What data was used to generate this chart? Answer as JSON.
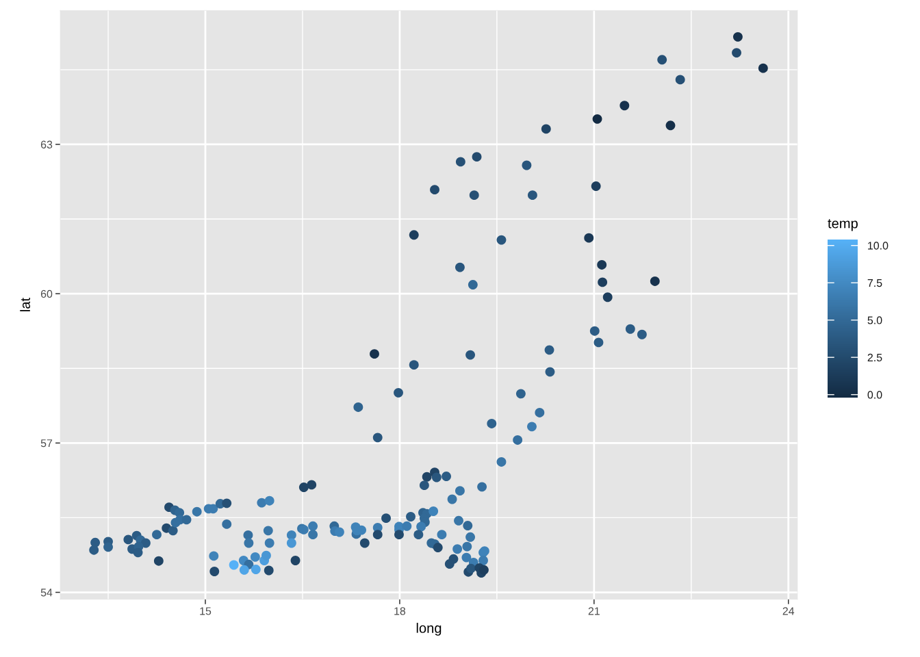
{
  "chart_data": {
    "type": "scatter",
    "xlabel": "long",
    "ylabel": "lat",
    "clabel": "temp",
    "x": [
      23.22,
      23.2,
      23.61,
      22.05,
      22.33,
      21.47,
      21.05,
      22.18,
      20.26,
      19.19,
      18.94,
      19.96,
      18.54,
      19.15,
      20.05,
      21.03,
      18.22,
      19.57,
      20.92,
      18.93,
      19.13,
      21.12,
      21.13,
      21.94,
      21.21,
      17.61,
      18.22,
      19.09,
      20.31,
      21.01,
      21.07,
      21.56,
      21.74,
      20.32,
      17.98,
      17.36,
      17.66,
      19.87,
      20.16,
      19.42,
      20.04,
      19.82,
      19.57,
      16.52,
      16.64,
      18.54,
      18.42,
      18.57,
      18.72,
      18.38,
      18.93,
      19.27,
      18.81,
      17.79,
      18.17,
      18.36,
      18.42,
      18.52,
      18.38,
      18.39,
      18.33,
      18.91,
      19.05,
      18.29,
      18.65,
      19.09,
      18.49,
      18.54,
      18.59,
      18.89,
      19.04,
      19.31,
      19.29,
      19.03,
      19.29,
      19.14,
      18.83,
      18.77,
      19.06,
      19.1,
      19.23,
      19.26,
      19.3,
      16.33,
      16.33,
      16.39,
      16.49,
      16.52,
      16.66,
      16.66,
      16.99,
      17.0,
      17.07,
      17.32,
      17.33,
      17.41,
      17.34,
      17.46,
      17.66,
      17.66,
      17.99,
      17.99,
      17.99,
      18.11,
      13.3,
      13.28,
      13.5,
      13.5,
      13.81,
      13.94,
      14.0,
      14.08,
      13.87,
      13.97,
      13.96,
      14.25,
      14.28,
      14.4,
      14.5,
      14.44,
      14.53,
      14.6,
      14.54,
      14.61,
      14.71,
      14.87,
      15.05,
      15.12,
      15.23,
      15.33,
      15.33,
      15.87,
      15.99,
      15.13,
      15.14,
      15.44,
      15.59,
      15.67,
      15.6,
      15.78,
      15.77,
      15.91,
      15.94,
      15.98,
      15.66,
      15.67,
      15.97,
      15.99
    ],
    "values": [
      65.16,
      64.84,
      64.53,
      64.7,
      64.3,
      63.78,
      63.51,
      63.38,
      63.31,
      62.75,
      62.65,
      62.58,
      62.09,
      61.98,
      61.98,
      62.16,
      61.18,
      61.08,
      61.12,
      60.53,
      60.18,
      60.58,
      60.23,
      60.25,
      59.93,
      58.79,
      58.57,
      58.77,
      58.87,
      59.25,
      59.02,
      59.29,
      59.18,
      58.43,
      58.01,
      57.72,
      57.11,
      57.99,
      57.61,
      57.39,
      57.33,
      57.06,
      56.62,
      56.11,
      56.16,
      56.41,
      56.32,
      56.31,
      56.33,
      56.15,
      56.04,
      56.12,
      55.87,
      55.49,
      55.52,
      55.6,
      55.58,
      55.63,
      55.49,
      55.41,
      55.32,
      55.44,
      55.34,
      55.16,
      55.16,
      55.11,
      54.99,
      54.97,
      54.9,
      54.87,
      54.92,
      54.83,
      54.8,
      54.7,
      54.64,
      54.6,
      54.67,
      54.57,
      54.41,
      54.48,
      54.49,
      54.39,
      54.45,
      55.15,
      54.99,
      54.64,
      55.28,
      55.26,
      55.33,
      55.16,
      55.33,
      55.23,
      55.21,
      55.31,
      55.17,
      55.25,
      55.24,
      54.99,
      55.3,
      55.16,
      55.32,
      55.26,
      55.16,
      55.33,
      55.0,
      54.85,
      55.02,
      54.91,
      55.06,
      55.14,
      55.05,
      54.99,
      54.87,
      54.92,
      54.8,
      55.16,
      54.63,
      55.29,
      55.24,
      55.71,
      55.65,
      55.6,
      55.4,
      55.46,
      55.46,
      55.62,
      55.68,
      55.68,
      55.78,
      55.79,
      55.37,
      55.8,
      55.84,
      54.73,
      54.42,
      54.55,
      54.64,
      54.56,
      54.45,
      54.46,
      54.71,
      54.64,
      54.74,
      54.44,
      55.15,
      54.99,
      55.24,
      54.99
    ],
    "cvalues": [
      0.5,
      2.5,
      0.5,
      3,
      3,
      0.5,
      -0.2,
      0.2,
      2,
      2.5,
      3,
      3.5,
      2.5,
      3,
      3.5,
      1.5,
      1.5,
      3.5,
      1,
      3.5,
      5,
      1,
      1.5,
      0.5,
      1.5,
      0.5,
      3.5,
      3.5,
      4,
      4,
      4,
      4,
      4,
      4,
      3.5,
      4.5,
      3.5,
      4.5,
      5.5,
      4.5,
      6.5,
      5.5,
      6,
      2,
      2,
      2,
      2,
      3.5,
      4,
      3.5,
      6,
      5.5,
      6,
      3,
      4,
      4.5,
      5,
      7,
      5,
      5,
      6.5,
      6,
      5,
      4,
      6.5,
      6,
      5,
      5,
      2.5,
      6.5,
      6,
      7,
      7,
      6.5,
      6.5,
      6.5,
      3,
      3,
      2.5,
      3.5,
      2,
      2,
      1.5,
      7,
      8.5,
      2,
      6,
      6.5,
      6.5,
      6,
      5,
      6.5,
      7,
      7,
      5.5,
      7,
      7,
      2.5,
      6.5,
      2.5,
      7,
      7,
      2.5,
      6.5,
      4,
      4,
      4,
      4.5,
      3.5,
      4,
      5,
      4,
      4,
      4.5,
      4,
      5,
      2,
      2.5,
      4,
      2.5,
      4.5,
      5,
      5.5,
      5.5,
      5,
      6,
      6.5,
      6.5,
      5,
      3,
      5.5,
      6.5,
      7,
      7,
      2.5,
      10.4,
      7.5,
      5.5,
      9.5,
      9.5,
      7.5,
      9,
      8.5,
      2.5,
      5.5,
      6,
      6,
      6.5
    ],
    "xlim": [
      12.76,
      24.14
    ],
    "ylim": [
      53.86,
      65.69
    ],
    "xticks": [
      15,
      18,
      21,
      24
    ],
    "yticks": [
      54,
      57,
      60,
      63
    ],
    "clim": [
      -0.2,
      10.4
    ],
    "cticks": [
      {
        "value": 0,
        "label": "0.0"
      },
      {
        "value": 2.5,
        "label": "2.5"
      },
      {
        "value": 5,
        "label": "5.0"
      },
      {
        "value": 7.5,
        "label": "7.5"
      },
      {
        "value": 10,
        "label": "10.0"
      }
    ],
    "grid": true,
    "marker": "circle"
  }
}
